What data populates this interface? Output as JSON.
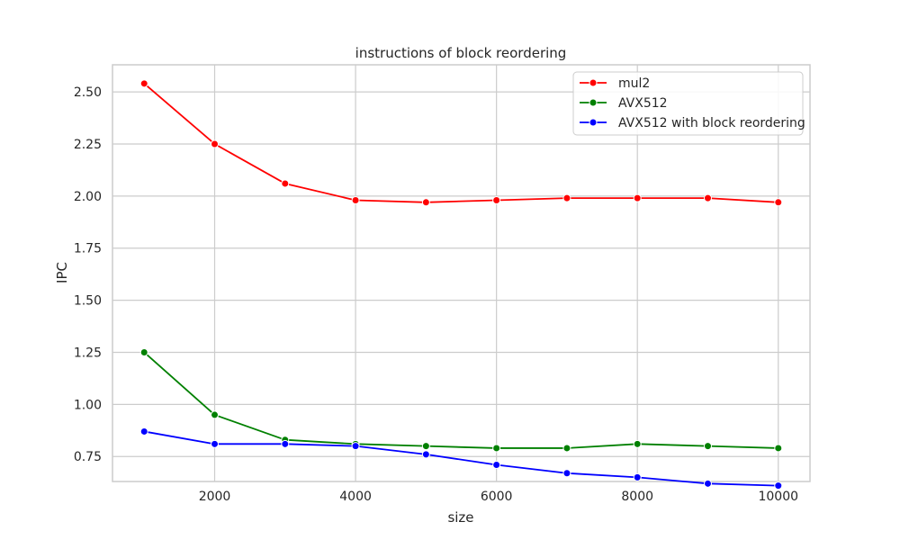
{
  "chart_data": {
    "type": "line",
    "title": "instructions of block reordering",
    "xlabel": "size",
    "ylabel": "IPC",
    "x": [
      1000,
      2000,
      3000,
      4000,
      5000,
      6000,
      7000,
      8000,
      9000,
      10000
    ],
    "xlim": [
      550,
      10450
    ],
    "ylim": [
      0.63,
      2.63
    ],
    "xticks": [
      2000,
      4000,
      6000,
      8000,
      10000
    ],
    "xtick_labels": [
      "2000",
      "4000",
      "6000",
      "8000",
      "10000"
    ],
    "yticks": [
      0.75,
      1.0,
      1.25,
      1.5,
      1.75,
      2.0,
      2.25,
      2.5
    ],
    "ytick_labels": [
      "0.75",
      "1.00",
      "1.25",
      "1.50",
      "1.75",
      "2.00",
      "2.25",
      "2.50"
    ],
    "grid": true,
    "legend_position": "top-right",
    "series": [
      {
        "name": "mul2",
        "color": "#ff0000",
        "values": [
          2.54,
          2.25,
          2.06,
          1.98,
          1.97,
          1.98,
          1.99,
          1.99,
          1.99,
          1.97
        ]
      },
      {
        "name": "AVX512",
        "color": "#008000",
        "values": [
          1.25,
          0.95,
          0.83,
          0.81,
          0.8,
          0.79,
          0.79,
          0.81,
          0.8,
          0.79
        ]
      },
      {
        "name": "AVX512 with block reordering",
        "color": "#0000ff",
        "values": [
          0.87,
          0.81,
          0.81,
          0.8,
          0.76,
          0.71,
          0.67,
          0.65,
          0.62,
          0.61
        ]
      }
    ]
  }
}
